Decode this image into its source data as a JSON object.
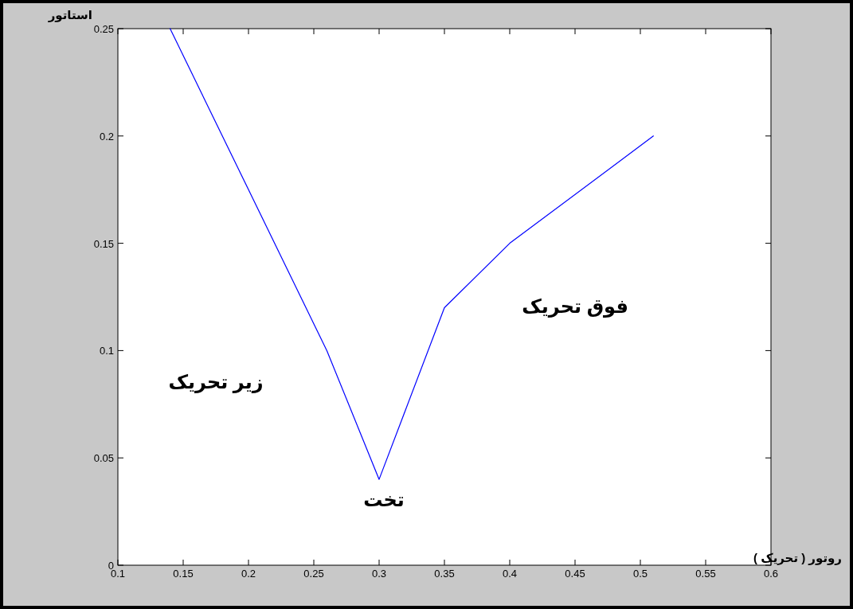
{
  "chart_data": {
    "type": "line",
    "xlabel": "روتور ( تحریک )",
    "ylabel": "استاتور",
    "x": [
      0.14,
      0.26,
      0.3,
      0.35,
      0.4,
      0.51
    ],
    "series": [
      {
        "color": "#0000ff",
        "values": [
          0.25,
          0.1,
          0.04,
          0.12,
          0.15,
          0.2
        ]
      }
    ],
    "xlim": [
      0.1,
      0.6
    ],
    "ylim": [
      0,
      0.25
    ],
    "xticks": [
      0.1,
      0.15,
      0.2,
      0.25,
      0.3,
      0.35,
      0.4,
      0.45,
      0.5,
      0.55,
      0.6
    ],
    "yticks": [
      0,
      0.05,
      0.1,
      0.15,
      0.2,
      0.25
    ],
    "grid": false,
    "marker": "none",
    "line_style": "solid",
    "annotations": [
      "زیر تحریک",
      {
        "text": "تخت",
        "x": 0.3,
        "y": 0.04
      },
      "فوق تحریک"
    ]
  }
}
